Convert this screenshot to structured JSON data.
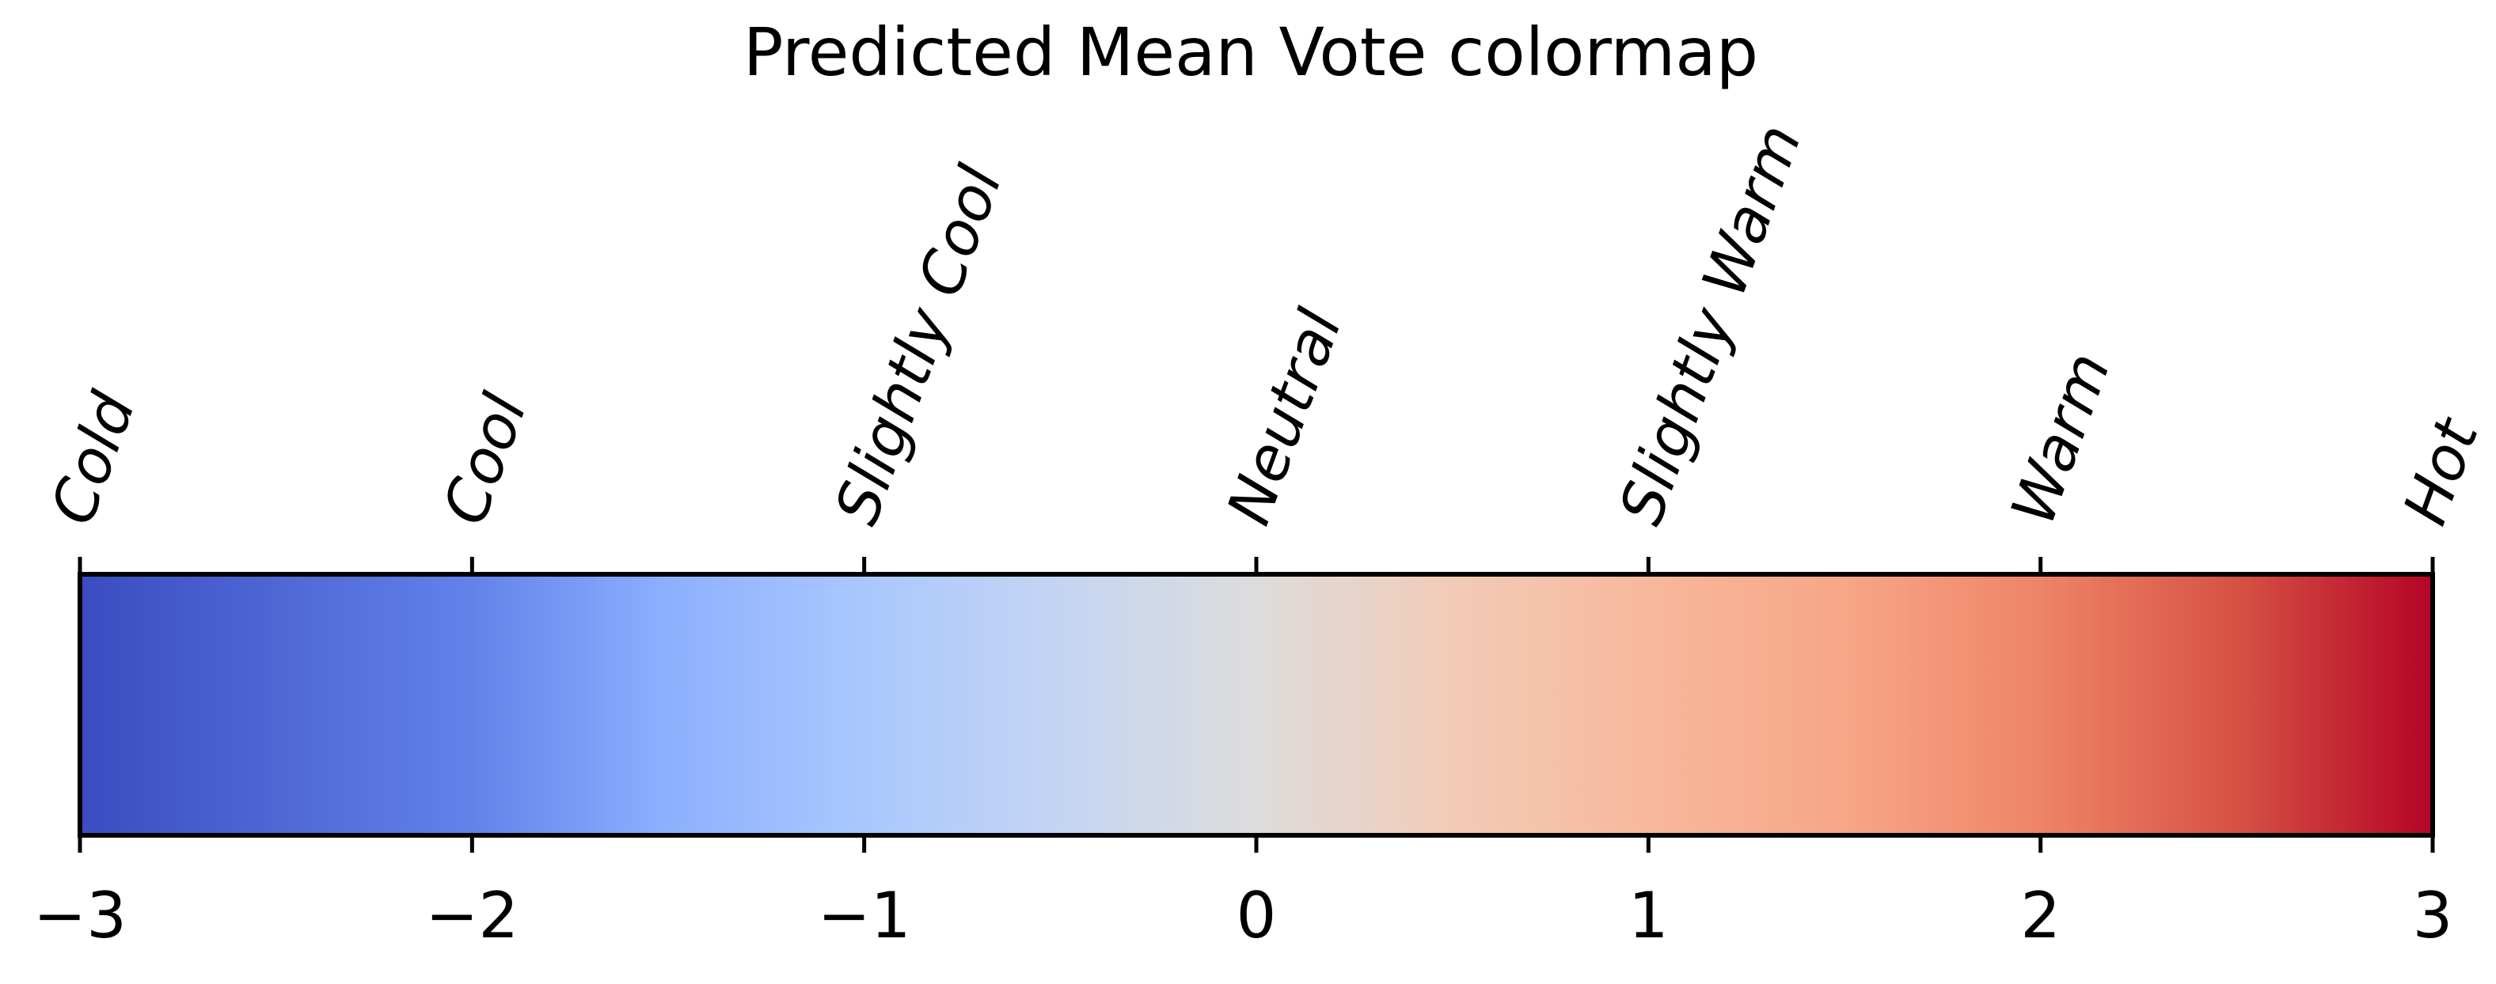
{
  "chart_data": {
    "type": "colorbar",
    "title": "Predicted Mean Vote colormap",
    "colormap": "coolwarm",
    "orientation": "horizontal",
    "range": [
      -3,
      3
    ],
    "ticks": [
      {
        "value": -3,
        "label": "−3",
        "category": "Cold"
      },
      {
        "value": -2,
        "label": "−2",
        "category": "Cool"
      },
      {
        "value": -1,
        "label": "−1",
        "category": "Slightly Cool"
      },
      {
        "value": 0,
        "label": "0",
        "category": "Neutral"
      },
      {
        "value": 1,
        "label": "1",
        "category": "Slightly Warm"
      },
      {
        "value": 2,
        "label": "2",
        "category": "Warm"
      },
      {
        "value": 3,
        "label": "3",
        "category": "Hot"
      }
    ],
    "color_stops": [
      {
        "value": -3,
        "color": "#3b4cc0"
      },
      {
        "value": -2,
        "color": "#6282ea"
      },
      {
        "value": -1.5,
        "color": "#8db0fe"
      },
      {
        "value": -1,
        "color": "#aac7fd"
      },
      {
        "value": -0.5,
        "color": "#c4d5f3"
      },
      {
        "value": 0,
        "color": "#dddcdc"
      },
      {
        "value": 0.5,
        "color": "#f2cbb7"
      },
      {
        "value": 1,
        "color": "#f7b89c"
      },
      {
        "value": 1.5,
        "color": "#f7a687"
      },
      {
        "value": 2,
        "color": "#ee8468"
      },
      {
        "value": 2.5,
        "color": "#d65244"
      },
      {
        "value": 3,
        "color": "#b40426"
      }
    ]
  }
}
